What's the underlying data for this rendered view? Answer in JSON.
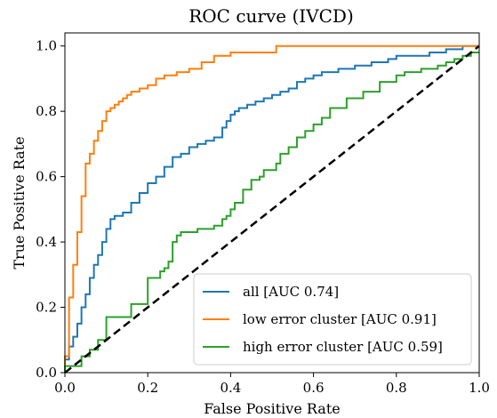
{
  "chart_data": {
    "type": "line",
    "title": "ROC curve (IVCD)",
    "xlabel": "False Positive Rate",
    "ylabel": "True Positive Rate",
    "xlim": [
      0.0,
      1.0
    ],
    "ylim": [
      0.0,
      1.04
    ],
    "xticks": [
      0.0,
      0.2,
      0.4,
      0.6,
      0.8,
      1.0
    ],
    "yticks": [
      0.0,
      0.2,
      0.4,
      0.6,
      0.8,
      1.0
    ],
    "xtick_labels": [
      "0.0",
      "0.2",
      "0.4",
      "0.6",
      "0.8",
      "1.0"
    ],
    "ytick_labels": [
      "0.0",
      "0.2",
      "0.4",
      "0.6",
      "0.8",
      "1.0"
    ],
    "grid": false,
    "legend_position": "bottom-right",
    "series": [
      {
        "name": "all [AUC 0.74]",
        "color": "#1f77b4",
        "x": [
          0.0,
          0.0,
          0.01,
          0.01,
          0.02,
          0.02,
          0.03,
          0.03,
          0.04,
          0.04,
          0.05,
          0.05,
          0.06,
          0.06,
          0.07,
          0.07,
          0.08,
          0.08,
          0.09,
          0.09,
          0.1,
          0.1,
          0.11,
          0.11,
          0.12,
          0.12,
          0.14,
          0.14,
          0.16,
          0.16,
          0.18,
          0.18,
          0.2,
          0.2,
          0.22,
          0.22,
          0.24,
          0.24,
          0.26,
          0.26,
          0.28,
          0.28,
          0.3,
          0.3,
          0.32,
          0.32,
          0.34,
          0.34,
          0.36,
          0.36,
          0.38,
          0.38,
          0.39,
          0.39,
          0.4,
          0.4,
          0.41,
          0.41,
          0.42,
          0.42,
          0.44,
          0.44,
          0.46,
          0.46,
          0.48,
          0.48,
          0.5,
          0.5,
          0.52,
          0.52,
          0.54,
          0.54,
          0.56,
          0.56,
          0.58,
          0.58,
          0.6,
          0.6,
          0.62,
          0.62,
          0.66,
          0.66,
          0.7,
          0.7,
          0.74,
          0.74,
          0.78,
          0.78,
          0.8,
          0.8,
          0.84,
          0.84,
          0.88,
          0.88,
          0.92,
          0.92,
          0.96,
          0.96,
          1.0
        ],
        "y": [
          0.0,
          0.04,
          0.04,
          0.08,
          0.08,
          0.11,
          0.11,
          0.15,
          0.15,
          0.2,
          0.2,
          0.24,
          0.24,
          0.29,
          0.29,
          0.33,
          0.33,
          0.36,
          0.36,
          0.4,
          0.4,
          0.44,
          0.44,
          0.47,
          0.47,
          0.48,
          0.48,
          0.49,
          0.49,
          0.52,
          0.52,
          0.55,
          0.55,
          0.58,
          0.58,
          0.6,
          0.6,
          0.63,
          0.63,
          0.66,
          0.66,
          0.67,
          0.67,
          0.69,
          0.69,
          0.7,
          0.7,
          0.71,
          0.71,
          0.72,
          0.72,
          0.75,
          0.75,
          0.77,
          0.77,
          0.79,
          0.79,
          0.8,
          0.8,
          0.81,
          0.81,
          0.82,
          0.82,
          0.83,
          0.83,
          0.84,
          0.84,
          0.85,
          0.85,
          0.86,
          0.86,
          0.87,
          0.87,
          0.89,
          0.89,
          0.9,
          0.9,
          0.91,
          0.91,
          0.92,
          0.92,
          0.93,
          0.93,
          0.94,
          0.94,
          0.95,
          0.95,
          0.96,
          0.96,
          0.97,
          0.97,
          0.97,
          0.97,
          0.98,
          0.98,
          0.99,
          0.99,
          1.0,
          1.0
        ]
      },
      {
        "name": "low error cluster [AUC 0.91]",
        "color": "#ff7f0e",
        "x": [
          0.0,
          0.0,
          0.01,
          0.01,
          0.02,
          0.02,
          0.03,
          0.03,
          0.04,
          0.04,
          0.05,
          0.05,
          0.06,
          0.06,
          0.07,
          0.07,
          0.08,
          0.08,
          0.09,
          0.09,
          0.1,
          0.1,
          0.11,
          0.11,
          0.12,
          0.12,
          0.13,
          0.13,
          0.14,
          0.14,
          0.15,
          0.15,
          0.16,
          0.16,
          0.18,
          0.18,
          0.2,
          0.2,
          0.22,
          0.22,
          0.24,
          0.24,
          0.27,
          0.27,
          0.3,
          0.3,
          0.33,
          0.33,
          0.36,
          0.36,
          0.4,
          0.4,
          0.51,
          0.51,
          1.0
        ],
        "y": [
          0.0,
          0.05,
          0.05,
          0.23,
          0.23,
          0.33,
          0.33,
          0.43,
          0.43,
          0.54,
          0.54,
          0.64,
          0.64,
          0.67,
          0.67,
          0.71,
          0.71,
          0.74,
          0.74,
          0.77,
          0.77,
          0.8,
          0.8,
          0.81,
          0.81,
          0.82,
          0.82,
          0.83,
          0.83,
          0.84,
          0.84,
          0.85,
          0.85,
          0.86,
          0.86,
          0.87,
          0.87,
          0.88,
          0.88,
          0.9,
          0.9,
          0.91,
          0.91,
          0.92,
          0.92,
          0.93,
          0.93,
          0.95,
          0.95,
          0.97,
          0.97,
          0.98,
          0.98,
          1.0,
          1.0
        ]
      },
      {
        "name": "high error cluster [AUC 0.59]",
        "color": "#2ca02c",
        "x": [
          0.0,
          0.0,
          0.04,
          0.04,
          0.06,
          0.06,
          0.08,
          0.08,
          0.1,
          0.1,
          0.16,
          0.16,
          0.2,
          0.2,
          0.23,
          0.23,
          0.24,
          0.24,
          0.25,
          0.25,
          0.26,
          0.26,
          0.27,
          0.27,
          0.28,
          0.28,
          0.32,
          0.32,
          0.36,
          0.36,
          0.38,
          0.38,
          0.39,
          0.39,
          0.4,
          0.4,
          0.41,
          0.41,
          0.43,
          0.43,
          0.45,
          0.45,
          0.47,
          0.47,
          0.48,
          0.48,
          0.51,
          0.51,
          0.52,
          0.52,
          0.54,
          0.54,
          0.56,
          0.56,
          0.58,
          0.58,
          0.6,
          0.6,
          0.62,
          0.62,
          0.64,
          0.64,
          0.68,
          0.68,
          0.72,
          0.72,
          0.76,
          0.76,
          0.8,
          0.8,
          0.82,
          0.82,
          0.86,
          0.86,
          0.9,
          0.9,
          0.92,
          0.92,
          0.94,
          0.94,
          0.96,
          0.96,
          0.98,
          0.98,
          1.0
        ],
        "y": [
          0.0,
          0.02,
          0.02,
          0.05,
          0.05,
          0.07,
          0.07,
          0.1,
          0.1,
          0.17,
          0.17,
          0.21,
          0.21,
          0.29,
          0.29,
          0.31,
          0.31,
          0.32,
          0.32,
          0.34,
          0.34,
          0.4,
          0.4,
          0.42,
          0.42,
          0.43,
          0.43,
          0.44,
          0.44,
          0.45,
          0.45,
          0.47,
          0.47,
          0.48,
          0.48,
          0.5,
          0.5,
          0.52,
          0.52,
          0.56,
          0.56,
          0.59,
          0.59,
          0.6,
          0.6,
          0.62,
          0.62,
          0.64,
          0.64,
          0.67,
          0.67,
          0.69,
          0.69,
          0.72,
          0.72,
          0.74,
          0.74,
          0.76,
          0.76,
          0.78,
          0.78,
          0.81,
          0.81,
          0.84,
          0.84,
          0.86,
          0.86,
          0.89,
          0.89,
          0.91,
          0.91,
          0.92,
          0.92,
          0.93,
          0.93,
          0.94,
          0.94,
          0.95,
          0.95,
          0.96,
          0.96,
          0.97,
          0.97,
          0.98,
          0.98
        ]
      }
    ],
    "reference_line": {
      "x": [
        0.0,
        1.0
      ],
      "y": [
        0.0,
        1.0
      ],
      "color": "#000000",
      "style": "dashed"
    }
  }
}
